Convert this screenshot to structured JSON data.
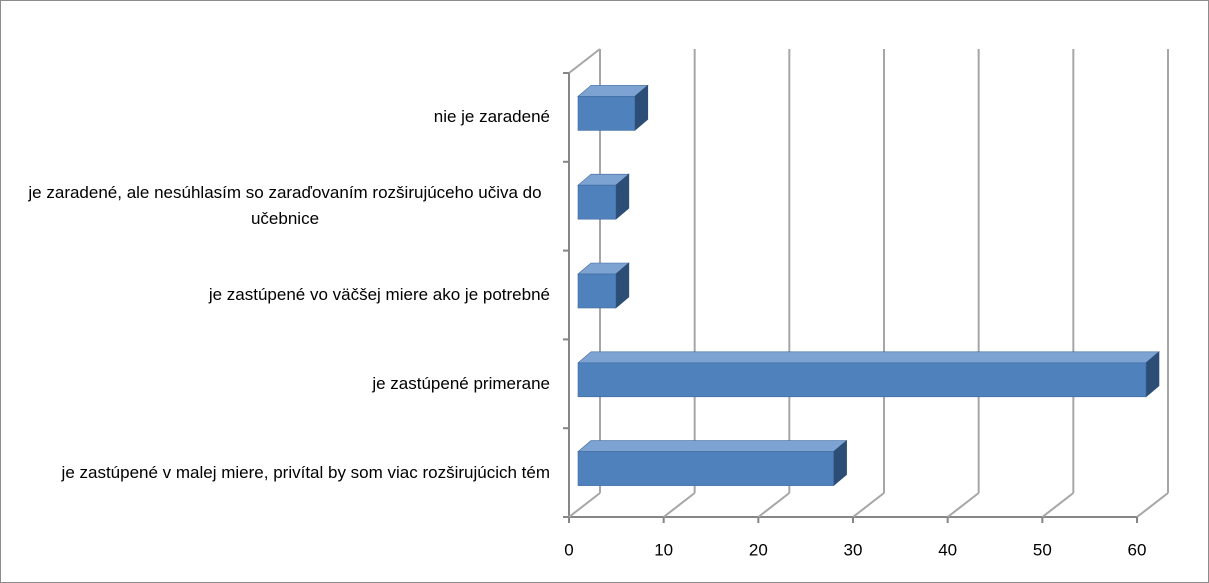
{
  "chart_data": {
    "type": "bar",
    "orientation": "horizontal",
    "3d": true,
    "categories": [
      "nie je zaradené",
      "je zaradené, ale nesúhlasím so zaraďovaním rozširujúceho učiva do učebnice",
      "je zastúpené vo väčšej miere ako je potrebné",
      "je zastúpené primerane",
      "je zastúpené v malej miere, privítal by som viac rozširujúcich tém"
    ],
    "values": [
      6,
      4,
      4,
      60,
      27
    ],
    "color": "#4f81bd",
    "xlim": [
      0,
      60
    ],
    "xticks": [
      0,
      10,
      20,
      30,
      40,
      50,
      60
    ],
    "grid": true
  }
}
